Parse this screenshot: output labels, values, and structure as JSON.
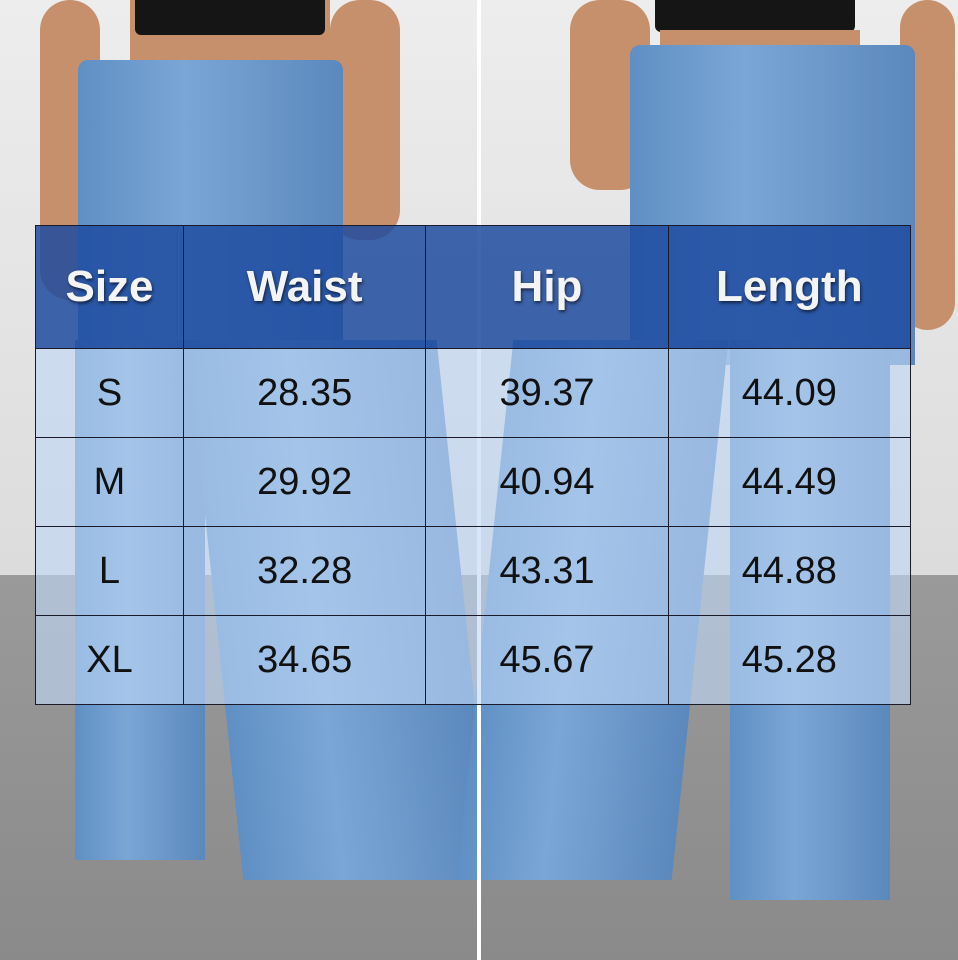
{
  "size_chart": {
    "headers": [
      "Size",
      "Waist",
      "Hip",
      "Length"
    ],
    "rows": [
      [
        "S",
        "28.35",
        "39.37",
        "44.09"
      ],
      [
        "M",
        "29.92",
        "40.94",
        "44.49"
      ],
      [
        "L",
        "32.28",
        "43.31",
        "44.88"
      ],
      [
        "XL",
        "34.65",
        "45.67",
        "45.28"
      ]
    ],
    "colors": {
      "header": "#1e4ba0",
      "row": "#bed7f5"
    }
  }
}
